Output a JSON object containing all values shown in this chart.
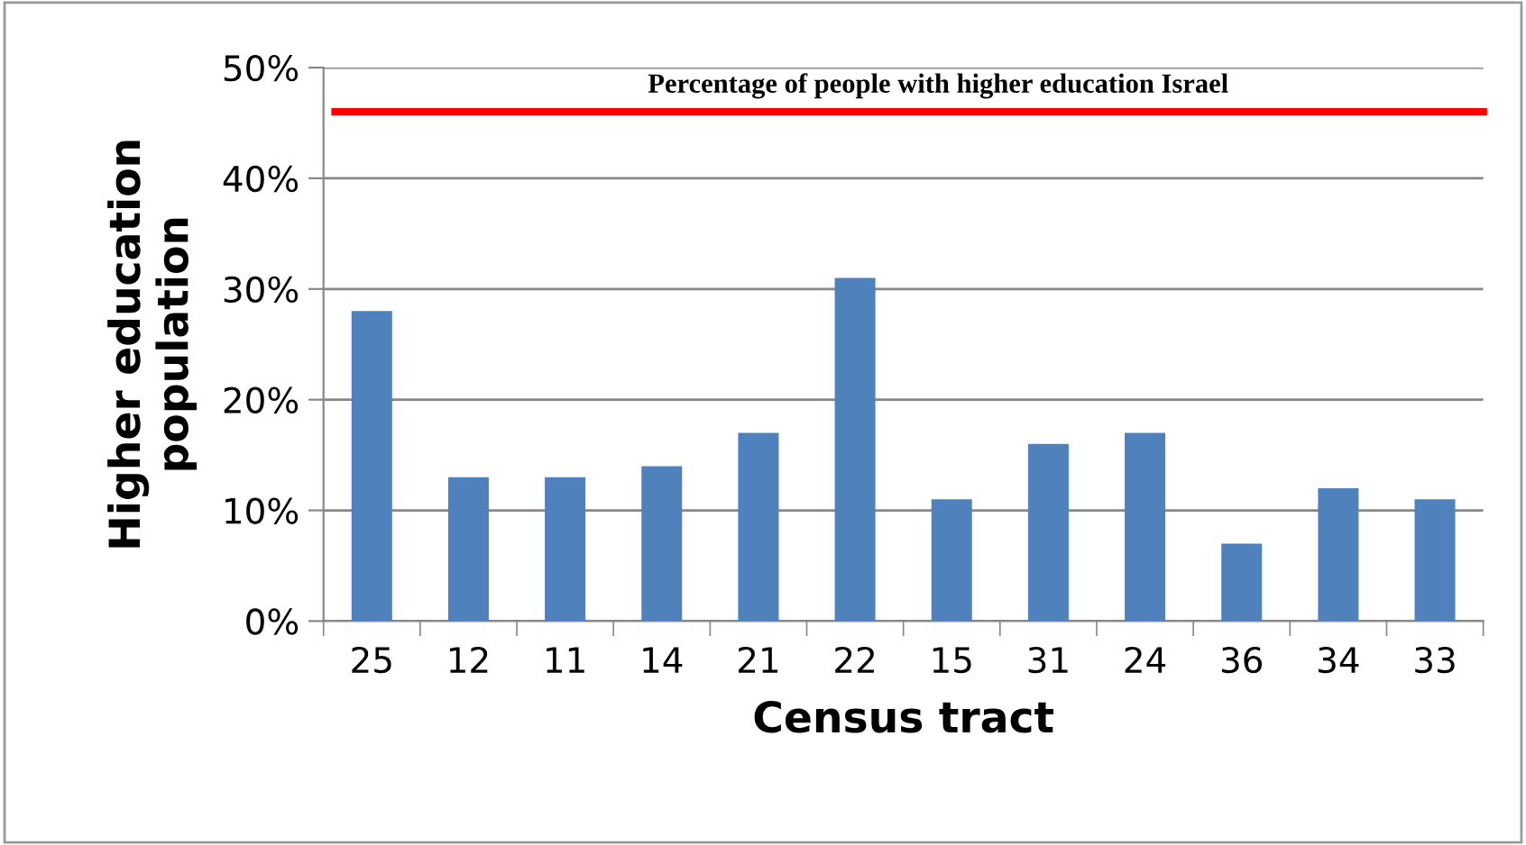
{
  "chart_data": {
    "type": "bar",
    "xlabel": "Census tract",
    "ylabel": "Higher education\npopulation",
    "categories": [
      "25",
      "12",
      "11",
      "14",
      "21",
      "22",
      "15",
      "31",
      "24",
      "36",
      "34",
      "33"
    ],
    "values": [
      28,
      13,
      13,
      14,
      17,
      31,
      11,
      16,
      17,
      7,
      12,
      11
    ],
    "color": "#4f81bd",
    "ylim": [
      0,
      50
    ],
    "yticks": [
      {
        "value": 0,
        "label": "0%"
      },
      {
        "value": 10,
        "label": "10%"
      },
      {
        "value": 20,
        "label": "20%"
      },
      {
        "value": 30,
        "label": "30%"
      },
      {
        "value": 40,
        "label": "40%"
      },
      {
        "value": 50,
        "label": "50%"
      }
    ],
    "grid": "y",
    "ref_lines": [
      {
        "axis": "y",
        "value": 46,
        "label": "Percentage of people with higher education Israel",
        "color": "#ff0000",
        "line_style": "solid"
      }
    ]
  }
}
